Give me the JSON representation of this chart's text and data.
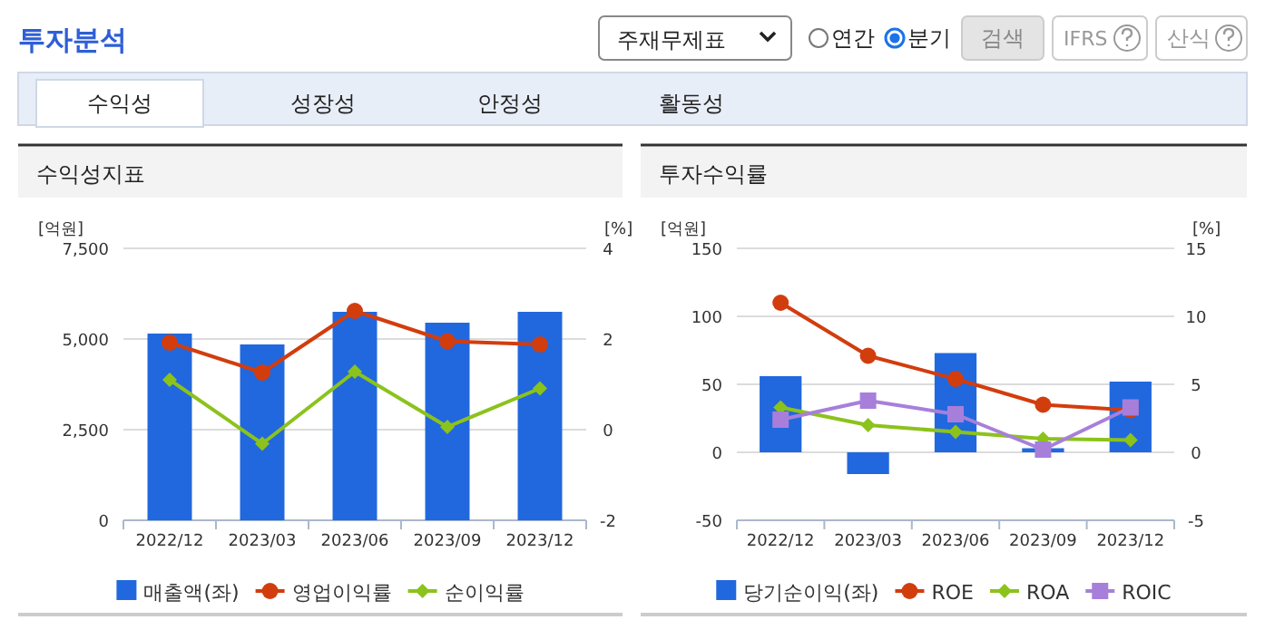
{
  "chart_data": [
    {
      "type": "other",
      "title": "투자분석",
      "annotations": [
        "주재무제표",
        "연간",
        "분기",
        "검색",
        "IFRS",
        "산식",
        "수익성",
        "성장성",
        "안정성",
        "활동성"
      ]
    },
    {
      "type": "bar",
      "title": "수익성지표",
      "ylabel": "[억원]",
      "y2label": "[%]",
      "categories": [
        "2022/12",
        "2023/03",
        "2023/06",
        "2023/09",
        "2023/12"
      ],
      "ylim": [
        0,
        7500
      ],
      "yticks": [
        0,
        {
          "value": 2500,
          "label": "2,500"
        },
        {
          "value": 5000,
          "label": "5,000"
        },
        {
          "value": 7500,
          "label": "7,500"
        }
      ],
      "y2lim": [
        -2,
        4
      ],
      "y2ticks": [
        -2,
        0,
        2,
        4
      ],
      "grid": "y",
      "legend": "bottom",
      "series": [
        {
          "name": "매출액(좌)",
          "type": "bar",
          "color": "#2168de",
          "values": [
            5150,
            4850,
            5750,
            5450,
            5750
          ]
        },
        {
          "name": "영업이익률",
          "type": "line",
          "axis": "y2",
          "marker": "circle",
          "color": "#d23d0e",
          "values": [
            1.92,
            1.26,
            2.62,
            1.95,
            1.88
          ]
        },
        {
          "name": "순이익률",
          "type": "line",
          "axis": "y2",
          "marker": "diamond",
          "color": "#8cc21c",
          "values": [
            1.1,
            -0.31,
            1.28,
            0.06,
            0.91
          ]
        }
      ]
    },
    {
      "type": "bar",
      "title": "투자수익률",
      "ylabel": "[억원]",
      "y2label": "[%]",
      "categories": [
        "2022/12",
        "2023/03",
        "2023/06",
        "2023/09",
        "2023/12"
      ],
      "ylim": [
        -50,
        150
      ],
      "yticks": [
        -50,
        0,
        50,
        100,
        150
      ],
      "y2lim": [
        -5,
        15
      ],
      "y2ticks": [
        -5,
        0,
        5,
        10,
        15
      ],
      "grid": "y",
      "legend": "bottom",
      "series": [
        {
          "name": "당기순이익(좌)",
          "type": "bar",
          "color": "#2168de",
          "values": [
            56,
            -16,
            73,
            3,
            52
          ]
        },
        {
          "name": "ROE",
          "type": "line",
          "axis": "y2",
          "marker": "circle",
          "color": "#d23d0e",
          "values": [
            11.0,
            7.1,
            5.4,
            3.5,
            3.1
          ]
        },
        {
          "name": "ROA",
          "type": "line",
          "axis": "y2",
          "marker": "diamond",
          "color": "#8cc21c",
          "values": [
            3.3,
            2.0,
            1.5,
            1.0,
            0.9
          ]
        },
        {
          "name": "ROIC",
          "type": "line",
          "axis": "y2",
          "marker": "square",
          "color": "#a77fdb",
          "values": [
            2.4,
            3.8,
            2.8,
            0.2,
            3.3
          ]
        }
      ]
    }
  ]
}
